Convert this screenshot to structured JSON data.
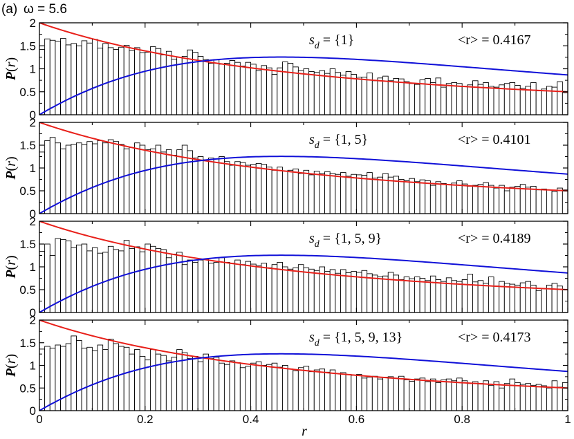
{
  "figure": {
    "panel_label": "(a)",
    "omega_text": "ω = 5.6"
  },
  "chart_data": {
    "type": "bar",
    "shared_xlabel": "r",
    "xlim": [
      0,
      1
    ],
    "xticks": [
      "0",
      "0.2",
      "0.4",
      "0.6",
      "0.8",
      "1"
    ],
    "bin_width": 0.01,
    "bins_x_start": [
      0.0,
      0.01,
      0.02,
      0.03,
      0.04,
      0.05,
      0.06,
      0.07,
      0.08,
      0.09,
      0.1,
      0.11,
      0.12,
      0.13,
      0.14,
      0.15,
      0.16,
      0.17,
      0.18,
      0.19,
      0.2,
      0.21,
      0.22,
      0.23,
      0.24,
      0.25,
      0.26,
      0.27,
      0.28,
      0.29,
      0.3,
      0.31,
      0.32,
      0.33,
      0.34,
      0.35,
      0.36,
      0.37,
      0.38,
      0.39,
      0.4,
      0.41,
      0.42,
      0.43,
      0.44,
      0.45,
      0.46,
      0.47,
      0.48,
      0.49,
      0.5,
      0.51,
      0.52,
      0.53,
      0.54,
      0.55,
      0.56,
      0.57,
      0.58,
      0.59,
      0.6,
      0.61,
      0.62,
      0.63,
      0.64,
      0.65,
      0.66,
      0.67,
      0.68,
      0.69,
      0.7,
      0.71,
      0.72,
      0.73,
      0.74,
      0.75,
      0.76,
      0.77,
      0.78,
      0.79,
      0.8,
      0.81,
      0.82,
      0.83,
      0.84,
      0.85,
      0.86,
      0.87,
      0.88,
      0.89,
      0.9,
      0.91,
      0.92,
      0.93,
      0.94,
      0.95,
      0.96,
      0.97,
      0.98,
      0.99
    ],
    "reference_curves": [
      {
        "kind": "poisson",
        "formula": "P(r) = 2/(1+r)^2",
        "color": "#e8201a"
      },
      {
        "kind": "goe",
        "formula": "P(r) = (27/4)(r+r^2)/(1+r+r^2)^(5/2)",
        "color": "#1010d8"
      }
    ],
    "panels": [
      {
        "ylabel": "P(r)",
        "ylim": [
          0,
          2
        ],
        "yticks": [
          "0",
          "0.5",
          "1",
          "1.5",
          "2"
        ],
        "sd_label": "s_d = {1}",
        "mean_label": "<r> = 0.4167",
        "values": [
          1.42,
          1.65,
          1.62,
          1.6,
          1.66,
          1.52,
          1.55,
          1.5,
          1.61,
          1.56,
          1.64,
          1.45,
          1.55,
          1.46,
          1.42,
          1.47,
          1.51,
          1.4,
          1.46,
          1.35,
          1.36,
          1.48,
          1.44,
          1.3,
          1.38,
          1.21,
          1.25,
          1.27,
          1.41,
          1.36,
          1.27,
          1.2,
          1.12,
          1.2,
          1.1,
          1.12,
          1.18,
          1.14,
          1.06,
          1.14,
          1.1,
          0.96,
          1.07,
          1.02,
          0.88,
          1.02,
          1.15,
          1.12,
          1.04,
          0.96,
          1.0,
          0.94,
          0.92,
          0.96,
          0.9,
          1.0,
          0.92,
          0.86,
          0.94,
          0.88,
          0.82,
          0.82,
          0.91,
          0.74,
          0.8,
          0.84,
          0.74,
          0.79,
          0.78,
          0.72,
          0.68,
          0.66,
          0.76,
          0.79,
          0.7,
          0.8,
          0.6,
          0.68,
          0.7,
          0.68,
          0.62,
          0.65,
          0.74,
          0.66,
          0.7,
          0.62,
          0.6,
          0.65,
          0.68,
          0.7,
          0.64,
          0.58,
          0.62,
          0.7,
          0.52,
          0.56,
          0.62,
          0.6,
          0.72,
          0.48
        ]
      },
      {
        "ylabel": "P(r)",
        "ylim": [
          0,
          2
        ],
        "yticks": [
          "0",
          "0.5",
          "1",
          "1.5",
          "2"
        ],
        "sd_label": "s_d = {1, 5}",
        "mean_label": "<r> = 0.4101",
        "values": [
          1.35,
          1.6,
          1.67,
          1.55,
          1.42,
          1.5,
          1.52,
          1.55,
          1.51,
          1.58,
          1.53,
          1.6,
          1.55,
          1.62,
          1.58,
          1.52,
          1.42,
          1.45,
          1.55,
          1.5,
          1.4,
          1.42,
          1.5,
          1.35,
          1.4,
          1.28,
          1.4,
          1.5,
          1.38,
          1.22,
          1.25,
          1.18,
          1.22,
          1.2,
          1.25,
          1.14,
          1.06,
          1.14,
          1.12,
          1.06,
          1.08,
          1.1,
          1.08,
          1.02,
          0.95,
          1.02,
          0.93,
          0.95,
          0.98,
          0.88,
          0.95,
          0.85,
          0.93,
          0.88,
          0.92,
          0.88,
          0.86,
          0.9,
          0.82,
          0.86,
          0.85,
          0.84,
          0.9,
          0.78,
          0.8,
          0.88,
          0.8,
          0.82,
          0.75,
          0.72,
          0.77,
          0.7,
          0.74,
          0.72,
          0.62,
          0.7,
          0.66,
          0.64,
          0.67,
          0.72,
          0.65,
          0.6,
          0.62,
          0.64,
          0.68,
          0.62,
          0.56,
          0.62,
          0.5,
          0.58,
          0.6,
          0.64,
          0.58,
          0.6,
          0.52,
          0.54,
          0.52,
          0.48,
          0.56,
          0.52
        ]
      },
      {
        "ylabel": "P(r)",
        "ylim": [
          0,
          2
        ],
        "yticks": [
          "0",
          "0.5",
          "1",
          "1.5",
          "2"
        ],
        "sd_label": "s_d = {1, 5, 9}",
        "mean_label": "<r> = 0.4189",
        "values": [
          1.34,
          1.5,
          1.25,
          1.62,
          1.6,
          1.57,
          1.42,
          1.48,
          1.5,
          1.35,
          1.42,
          1.3,
          1.32,
          1.45,
          1.38,
          1.35,
          1.58,
          1.4,
          1.44,
          1.33,
          1.5,
          1.45,
          1.4,
          1.38,
          1.2,
          1.28,
          1.32,
          1.05,
          1.15,
          1.1,
          1.15,
          1.16,
          1.08,
          1.1,
          1.2,
          1.1,
          1.08,
          1.15,
          1.05,
          1.12,
          1.06,
          1.02,
          1.08,
          0.98,
          1.05,
          1.1,
          1.0,
          0.95,
          0.98,
          1.05,
          0.98,
          0.95,
          0.92,
          1.0,
          0.9,
          0.94,
          0.86,
          0.94,
          0.87,
          0.9,
          0.88,
          0.92,
          0.85,
          0.82,
          0.78,
          0.8,
          0.88,
          0.82,
          0.72,
          0.78,
          0.74,
          0.78,
          0.75,
          0.7,
          0.8,
          0.72,
          0.68,
          0.76,
          0.7,
          0.68,
          0.72,
          0.84,
          0.67,
          0.7,
          0.64,
          0.78,
          0.58,
          0.68,
          0.64,
          0.62,
          0.6,
          0.65,
          0.68,
          0.6,
          0.48,
          0.53,
          0.6,
          0.64,
          0.58,
          0.5
        ]
      },
      {
        "ylabel": "P(r)",
        "ylim": [
          0,
          2
        ],
        "yticks": [
          "0",
          "0.5",
          "1",
          "1.5",
          "2"
        ],
        "sd_label": "s_d = {1, 5, 9, 13}",
        "mean_label": "<r> = 0.4173",
        "values": [
          1.36,
          1.42,
          1.38,
          1.45,
          1.42,
          1.48,
          1.65,
          1.55,
          1.38,
          1.4,
          1.32,
          1.45,
          1.35,
          1.58,
          1.48,
          1.42,
          1.4,
          1.25,
          1.35,
          1.2,
          1.12,
          1.35,
          1.25,
          1.22,
          1.1,
          1.18,
          1.35,
          1.28,
          1.15,
          1.2,
          1.08,
          1.25,
          1.15,
          1.18,
          1.05,
          1.02,
          1.1,
          1.06,
          0.95,
          0.98,
          1.05,
          1.08,
          1.0,
          1.02,
          1.05,
          0.96,
          1.0,
          0.92,
          0.88,
          0.95,
          0.98,
          0.86,
          0.9,
          0.92,
          0.85,
          0.9,
          0.82,
          0.84,
          0.8,
          0.78,
          0.8,
          0.72,
          0.74,
          0.76,
          0.7,
          0.74,
          0.75,
          0.72,
          0.76,
          0.68,
          0.65,
          0.7,
          0.72,
          0.64,
          0.7,
          0.62,
          0.68,
          0.7,
          0.66,
          0.72,
          0.66,
          0.6,
          0.64,
          0.6,
          0.66,
          0.56,
          0.64,
          0.5,
          0.6,
          0.7,
          0.62,
          0.58,
          0.6,
          0.56,
          0.58,
          0.55,
          0.5,
          0.66,
          0.52,
          0.62
        ]
      }
    ]
  }
}
